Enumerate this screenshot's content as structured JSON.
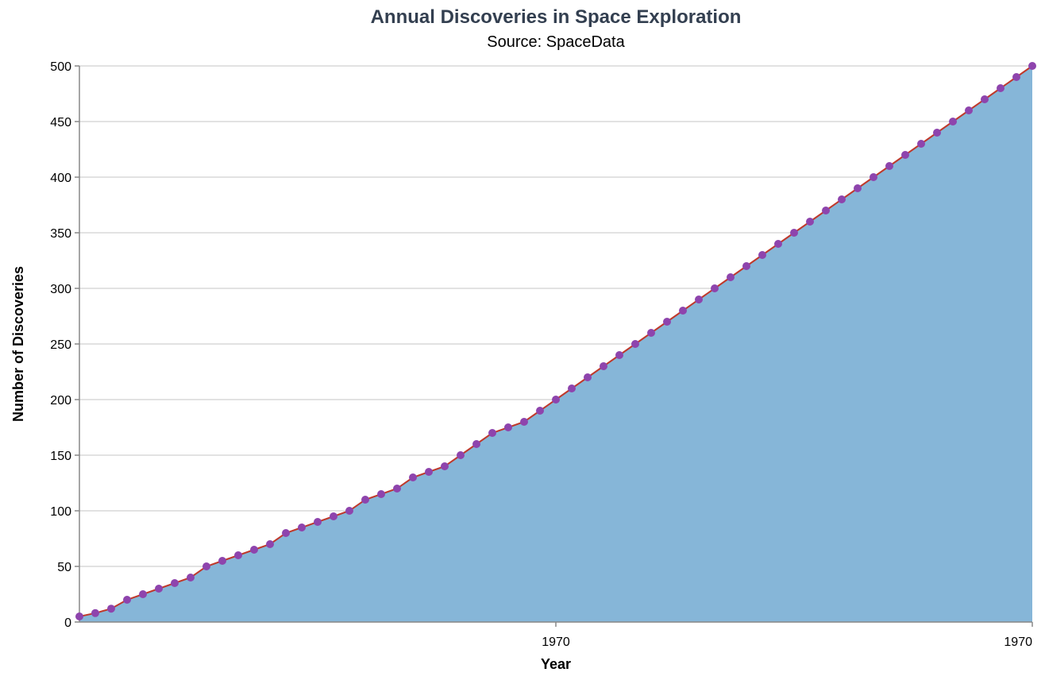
{
  "chart_data": {
    "type": "area",
    "title": "Annual Discoveries in Space Exploration",
    "subtitle": "Source: SpaceData",
    "xlabel": "Year",
    "ylabel": "Number of Discoveries",
    "x_tick_labels": [
      "1970",
      "1970"
    ],
    "ylim": [
      0,
      500
    ],
    "y_ticks": [
      0,
      50,
      100,
      150,
      200,
      250,
      300,
      350,
      400,
      450,
      500
    ],
    "grid": true,
    "series": [
      {
        "values": [
          5,
          8,
          12,
          20,
          25,
          30,
          35,
          40,
          50,
          55,
          60,
          65,
          70,
          80,
          85,
          90,
          95,
          100,
          110,
          115,
          120,
          130,
          135,
          140,
          150,
          160,
          170,
          175,
          180,
          190,
          200,
          210,
          220,
          230,
          240,
          250,
          260,
          270,
          280,
          290,
          300,
          310,
          320,
          330,
          340,
          350,
          360,
          370,
          380,
          390,
          400,
          410,
          420,
          430,
          440,
          450,
          460,
          470,
          480,
          490,
          500
        ]
      }
    ],
    "colors": {
      "area_fill": "#86b6d8",
      "line": "#c0392b",
      "point": "#8e44ad",
      "title": "#333f50"
    }
  }
}
